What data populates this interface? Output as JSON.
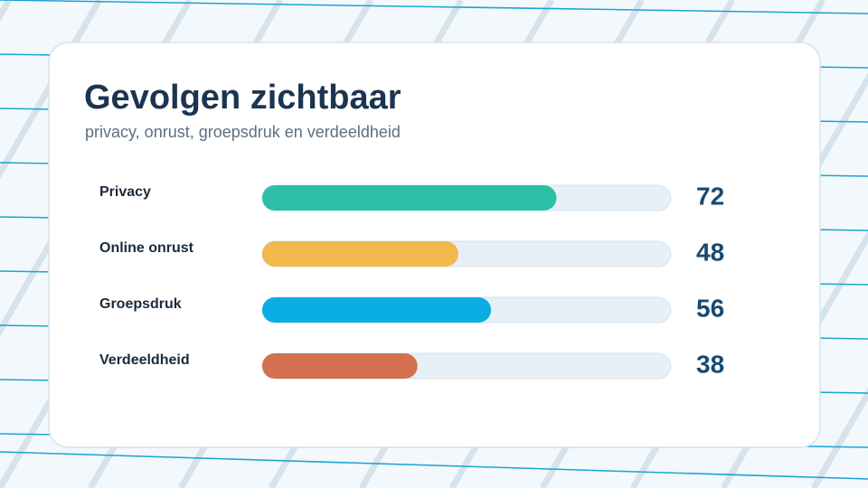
{
  "chart_data": {
    "type": "bar",
    "orientation": "horizontal",
    "title": "Gevolgen zichtbaar",
    "subtitle": "privacy, onrust, groepsdruk en verdeeldheid",
    "categories": [
      "Privacy",
      "Online onrust",
      "Groepsdruk",
      "Verdeeldheid"
    ],
    "values": [
      72,
      48,
      56,
      38
    ],
    "colors": [
      "#2bbfa8",
      "#f2b84b",
      "#0aaee3",
      "#d4704f"
    ],
    "xlim": [
      0,
      100
    ]
  }
}
